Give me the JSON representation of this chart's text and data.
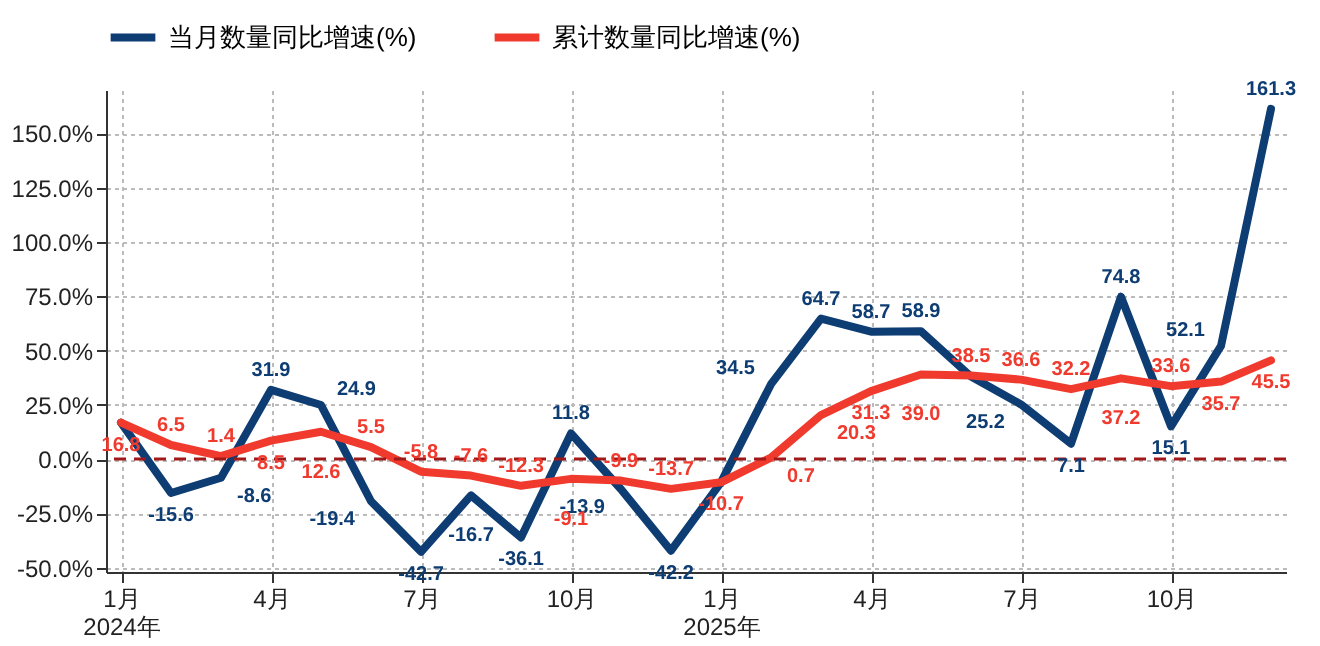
{
  "chart_data": {
    "type": "line",
    "categories": [
      "1月\n2024年",
      null,
      null,
      "4月",
      null,
      null,
      "7月",
      null,
      null,
      "10月",
      null,
      null,
      "1月\n2025年",
      null,
      null,
      "4月",
      null,
      null,
      "7月",
      null,
      null,
      "10月",
      null,
      null
    ],
    "series": [
      {
        "name": "当月数量同比增速(%)",
        "color": "#0d3d73",
        "values": [
          16.8,
          -15.6,
          -8.6,
          31.9,
          24.9,
          -19.4,
          -42.7,
          -16.7,
          -36.1,
          11.8,
          -13.9,
          -42.2,
          -10.7,
          34.5,
          64.7,
          58.7,
          58.9,
          38.0,
          25.2,
          7.1,
          74.8,
          15.1,
          52.1,
          161.3
        ],
        "value_labels": [
          null,
          "-15.6",
          "-8.6",
          "31.9",
          "24.9",
          "-19.4",
          "-42.7",
          "-16.7",
          "-36.1",
          "11.8",
          "-13.9",
          "-42.2",
          null,
          "34.5",
          "64.7",
          "58.7",
          "58.9",
          null,
          "25.2",
          "7.1",
          "74.8",
          "15.1",
          "52.1",
          "161.3"
        ]
      },
      {
        "name": "累计数量同比增速(%)",
        "color": "#f03a2e",
        "values": [
          16.8,
          6.5,
          1.4,
          8.5,
          12.6,
          5.5,
          -5.8,
          -7.6,
          -12.3,
          -9.1,
          -9.9,
          -13.7,
          -10.7,
          0.7,
          20.3,
          31.3,
          39.0,
          38.5,
          36.6,
          32.2,
          37.2,
          33.6,
          35.7,
          45.5
        ],
        "value_labels": [
          "16.8",
          "6.5",
          "1.4",
          "8.5",
          "12.6",
          "5.5",
          "-5.8",
          "-7.6",
          "-12.3",
          "-9.1",
          "-9.9",
          "-13.7",
          "-10.7",
          "0.7",
          "20.3",
          "31.3",
          "39.0",
          "38.5",
          "36.6",
          "32.2",
          "37.2",
          "33.6",
          "35.7",
          "45.5"
        ]
      }
    ],
    "ylim": [
      -52,
      170
    ],
    "yticks": [
      {
        "value": -50,
        "label": "-50.0%"
      },
      {
        "value": -25,
        "label": "-25.0%"
      },
      {
        "value": 0,
        "label": "0.0%"
      },
      {
        "value": 25,
        "label": "25.0%"
      },
      {
        "value": 50,
        "label": "50.0%"
      },
      {
        "value": 75,
        "label": "75.0%"
      },
      {
        "value": 100,
        "label": "100.0%"
      },
      {
        "value": 125,
        "label": "125.0%"
      },
      {
        "value": 150,
        "label": "150.0%"
      }
    ],
    "ref_lines": [
      {
        "axis": "y",
        "value": 0,
        "color": "#a01818",
        "line_style": "dashed"
      }
    ],
    "grid": true,
    "legend": "top",
    "marker": "none",
    "line_style": "solid"
  }
}
